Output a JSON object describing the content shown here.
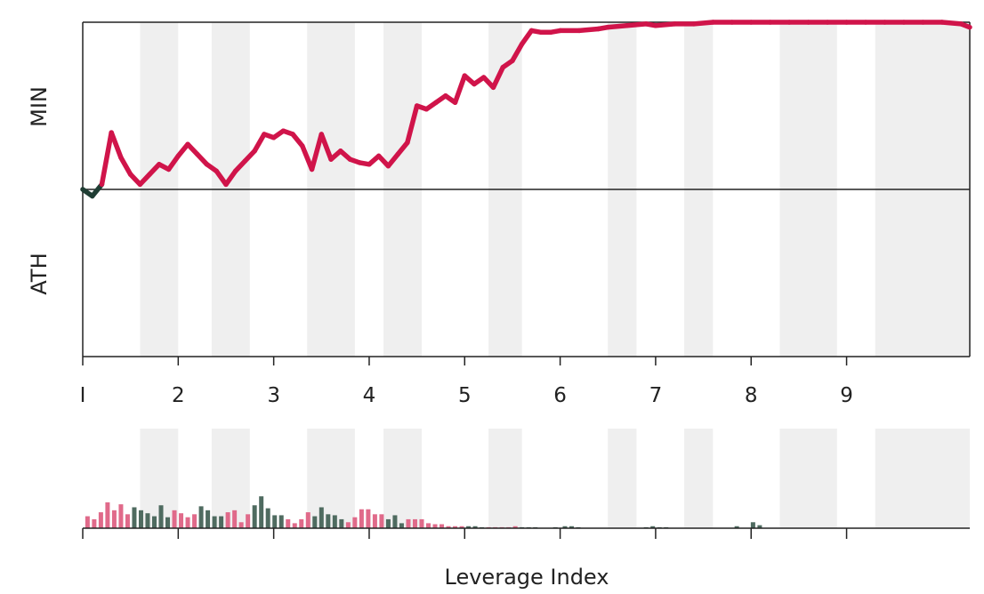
{
  "chart_data": [
    {
      "type": "line",
      "xlabel": "",
      "ylabel_top": "MIN",
      "ylabel_bottom": "ATH",
      "xlim": [
        1,
        10.29
      ],
      "ylim": [
        -1.0,
        1.0
      ],
      "x_ticks": [
        1,
        2,
        3,
        4,
        5,
        6,
        7,
        8,
        9
      ],
      "x_tick_labels": [
        "I",
        "2",
        "3",
        "4",
        "5",
        "6",
        "7",
        "8",
        "9"
      ],
      "baseline": 0,
      "colors": {
        "positive": "#d0144a",
        "negative": "#1f3d33",
        "band": "#efefef",
        "axis": "#222222"
      },
      "shaded_bands": [
        [
          1.6,
          2.0
        ],
        [
          2.35,
          2.75
        ],
        [
          3.35,
          3.85
        ],
        [
          4.15,
          4.55
        ],
        [
          5.25,
          5.6
        ],
        [
          6.5,
          6.8
        ],
        [
          7.3,
          7.6
        ],
        [
          8.3,
          8.9
        ],
        [
          9.3,
          10.29
        ]
      ],
      "series": [
        {
          "x": [
            1.0,
            1.1,
            1.2,
            1.3,
            1.4,
            1.5,
            1.6,
            1.7,
            1.8,
            1.9,
            2.0,
            2.1,
            2.2,
            2.3,
            2.4,
            2.5,
            2.6,
            2.7,
            2.8,
            2.9,
            3.0,
            3.1,
            3.2,
            3.3,
            3.4,
            3.5,
            3.6,
            3.7,
            3.8,
            3.9,
            4.0,
            4.1,
            4.2,
            4.3,
            4.4,
            4.5,
            4.6,
            4.7,
            4.8,
            4.9,
            5.0,
            5.1,
            5.2,
            5.3,
            5.4,
            5.5,
            5.6,
            5.7,
            5.8,
            5.9,
            6.0,
            6.2,
            6.4,
            6.5,
            6.7,
            6.9,
            7.0,
            7.2,
            7.4,
            7.6,
            7.8,
            8.0,
            8.2,
            8.4,
            8.6,
            8.8,
            9.0,
            9.2,
            9.4,
            9.6,
            9.8,
            10.0,
            10.2,
            10.29
          ],
          "y": [
            0.0,
            -0.04,
            0.03,
            0.34,
            0.19,
            0.09,
            0.03,
            0.09,
            0.15,
            0.12,
            0.2,
            0.27,
            0.21,
            0.15,
            0.11,
            0.03,
            0.11,
            0.17,
            0.23,
            0.33,
            0.31,
            0.35,
            0.33,
            0.26,
            0.12,
            0.33,
            0.18,
            0.23,
            0.18,
            0.16,
            0.15,
            0.2,
            0.14,
            0.21,
            0.28,
            0.5,
            0.48,
            0.52,
            0.56,
            0.52,
            0.68,
            0.63,
            0.67,
            0.61,
            0.73,
            0.77,
            0.87,
            0.95,
            0.94,
            0.94,
            0.95,
            0.95,
            0.96,
            0.97,
            0.98,
            0.99,
            0.98,
            0.99,
            0.99,
            1.0,
            1.0,
            1.0,
            1.0,
            1.0,
            1.0,
            1.0,
            1.0,
            1.0,
            1.0,
            1.0,
            1.0,
            1.0,
            0.99,
            0.97
          ]
        }
      ]
    },
    {
      "type": "bar",
      "xlabel": "Leverage Index",
      "xlim": [
        1,
        10.29
      ],
      "ylim": [
        0,
        1.0
      ],
      "x_ticks": [
        1,
        2,
        3,
        4,
        5,
        6,
        7,
        8,
        9
      ],
      "colors": {
        "positive": "#e06a8a",
        "negative": "#4f6b60",
        "band": "#efefef",
        "axis": "#222222"
      },
      "shaded_bands": [
        [
          1.6,
          2.0
        ],
        [
          2.35,
          2.75
        ],
        [
          3.35,
          3.85
        ],
        [
          4.15,
          4.55
        ],
        [
          5.25,
          5.6
        ],
        [
          6.5,
          6.8
        ],
        [
          7.3,
          7.6
        ],
        [
          8.3,
          8.9
        ],
        [
          9.3,
          10.29
        ]
      ],
      "bars": [
        {
          "x": 1.05,
          "v": 0.12,
          "s": "p"
        },
        {
          "x": 1.12,
          "v": 0.09,
          "s": "p"
        },
        {
          "x": 1.19,
          "v": 0.16,
          "s": "p"
        },
        {
          "x": 1.26,
          "v": 0.26,
          "s": "p"
        },
        {
          "x": 1.33,
          "v": 0.18,
          "s": "p"
        },
        {
          "x": 1.4,
          "v": 0.24,
          "s": "p"
        },
        {
          "x": 1.47,
          "v": 0.14,
          "s": "p"
        },
        {
          "x": 1.54,
          "v": 0.21,
          "s": "n"
        },
        {
          "x": 1.61,
          "v": 0.18,
          "s": "n"
        },
        {
          "x": 1.68,
          "v": 0.15,
          "s": "n"
        },
        {
          "x": 1.75,
          "v": 0.12,
          "s": "n"
        },
        {
          "x": 1.82,
          "v": 0.23,
          "s": "n"
        },
        {
          "x": 1.89,
          "v": 0.11,
          "s": "n"
        },
        {
          "x": 1.96,
          "v": 0.18,
          "s": "p"
        },
        {
          "x": 2.03,
          "v": 0.15,
          "s": "p"
        },
        {
          "x": 2.1,
          "v": 0.11,
          "s": "p"
        },
        {
          "x": 2.17,
          "v": 0.14,
          "s": "p"
        },
        {
          "x": 2.24,
          "v": 0.22,
          "s": "n"
        },
        {
          "x": 2.31,
          "v": 0.18,
          "s": "n"
        },
        {
          "x": 2.38,
          "v": 0.12,
          "s": "n"
        },
        {
          "x": 2.45,
          "v": 0.12,
          "s": "n"
        },
        {
          "x": 2.52,
          "v": 0.16,
          "s": "p"
        },
        {
          "x": 2.59,
          "v": 0.18,
          "s": "p"
        },
        {
          "x": 2.66,
          "v": 0.06,
          "s": "p"
        },
        {
          "x": 2.73,
          "v": 0.14,
          "s": "p"
        },
        {
          "x": 2.8,
          "v": 0.23,
          "s": "n"
        },
        {
          "x": 2.87,
          "v": 0.32,
          "s": "n"
        },
        {
          "x": 2.94,
          "v": 0.2,
          "s": "n"
        },
        {
          "x": 3.01,
          "v": 0.13,
          "s": "n"
        },
        {
          "x": 3.08,
          "v": 0.13,
          "s": "n"
        },
        {
          "x": 3.15,
          "v": 0.09,
          "s": "p"
        },
        {
          "x": 3.22,
          "v": 0.05,
          "s": "p"
        },
        {
          "x": 3.29,
          "v": 0.09,
          "s": "p"
        },
        {
          "x": 3.36,
          "v": 0.16,
          "s": "p"
        },
        {
          "x": 3.43,
          "v": 0.12,
          "s": "n"
        },
        {
          "x": 3.5,
          "v": 0.21,
          "s": "n"
        },
        {
          "x": 3.57,
          "v": 0.14,
          "s": "n"
        },
        {
          "x": 3.64,
          "v": 0.13,
          "s": "n"
        },
        {
          "x": 3.71,
          "v": 0.09,
          "s": "n"
        },
        {
          "x": 3.78,
          "v": 0.06,
          "s": "p"
        },
        {
          "x": 3.85,
          "v": 0.11,
          "s": "p"
        },
        {
          "x": 3.92,
          "v": 0.19,
          "s": "p"
        },
        {
          "x": 3.99,
          "v": 0.19,
          "s": "p"
        },
        {
          "x": 4.06,
          "v": 0.14,
          "s": "p"
        },
        {
          "x": 4.13,
          "v": 0.14,
          "s": "p"
        },
        {
          "x": 4.2,
          "v": 0.09,
          "s": "n"
        },
        {
          "x": 4.27,
          "v": 0.13,
          "s": "n"
        },
        {
          "x": 4.34,
          "v": 0.05,
          "s": "n"
        },
        {
          "x": 4.41,
          "v": 0.09,
          "s": "p"
        },
        {
          "x": 4.48,
          "v": 0.09,
          "s": "p"
        },
        {
          "x": 4.55,
          "v": 0.09,
          "s": "p"
        },
        {
          "x": 4.62,
          "v": 0.05,
          "s": "p"
        },
        {
          "x": 4.69,
          "v": 0.04,
          "s": "p"
        },
        {
          "x": 4.76,
          "v": 0.04,
          "s": "p"
        },
        {
          "x": 4.83,
          "v": 0.02,
          "s": "p"
        },
        {
          "x": 4.9,
          "v": 0.02,
          "s": "p"
        },
        {
          "x": 4.97,
          "v": 0.02,
          "s": "p"
        },
        {
          "x": 5.04,
          "v": 0.02,
          "s": "n"
        },
        {
          "x": 5.11,
          "v": 0.02,
          "s": "n"
        },
        {
          "x": 5.18,
          "v": 0.01,
          "s": "n"
        },
        {
          "x": 5.25,
          "v": 0.01,
          "s": "p"
        },
        {
          "x": 5.32,
          "v": 0.01,
          "s": "p"
        },
        {
          "x": 5.39,
          "v": 0.01,
          "s": "p"
        },
        {
          "x": 5.46,
          "v": 0.01,
          "s": "p"
        },
        {
          "x": 5.53,
          "v": 0.02,
          "s": "p"
        },
        {
          "x": 5.6,
          "v": 0.01,
          "s": "n"
        },
        {
          "x": 5.67,
          "v": 0.01,
          "s": "n"
        },
        {
          "x": 5.74,
          "v": 0.01,
          "s": "n"
        },
        {
          "x": 5.95,
          "v": 0.01,
          "s": "n"
        },
        {
          "x": 6.05,
          "v": 0.02,
          "s": "n"
        },
        {
          "x": 6.12,
          "v": 0.02,
          "s": "n"
        },
        {
          "x": 6.19,
          "v": 0.01,
          "s": "n"
        },
        {
          "x": 6.9,
          "v": 0.01,
          "s": "n"
        },
        {
          "x": 6.97,
          "v": 0.02,
          "s": "n"
        },
        {
          "x": 7.04,
          "v": 0.01,
          "s": "n"
        },
        {
          "x": 7.11,
          "v": 0.01,
          "s": "n"
        },
        {
          "x": 7.85,
          "v": 0.02,
          "s": "n"
        },
        {
          "x": 8.02,
          "v": 0.06,
          "s": "n"
        },
        {
          "x": 8.09,
          "v": 0.03,
          "s": "n"
        }
      ]
    }
  ]
}
